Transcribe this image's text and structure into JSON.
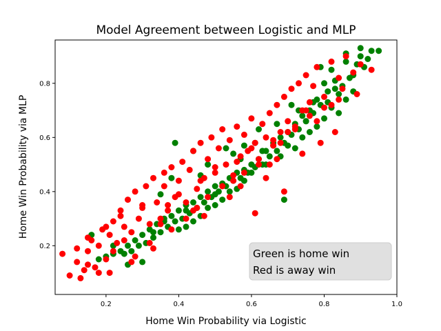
{
  "chart_data": {
    "type": "scatter",
    "title": "Model Agreement between Logistic and MLP",
    "xlabel": "Home Win Probability via Logistic",
    "ylabel": "Home Win Probability via MLP",
    "xlim": [
      0.06,
      1.0
    ],
    "ylim": [
      0.02,
      0.96
    ],
    "x_ticks": [
      "0.2",
      "0.4",
      "0.6",
      "0.8",
      "1.0"
    ],
    "y_ticks": [
      "0.2",
      "0.4",
      "0.6",
      "0.8"
    ],
    "grid": false,
    "colors": {
      "home_win": "#008000",
      "away_win": "#ff0000"
    },
    "annotation": {
      "lines": [
        "Green is home win",
        "Red is away win"
      ],
      "box_color": "#e0e0e0"
    },
    "series": [
      {
        "color": "#008000",
        "x": [
          0.86,
          0.9,
          0.82,
          0.93,
          0.88,
          0.8,
          0.84,
          0.91,
          0.78,
          0.87,
          0.76,
          0.83,
          0.89,
          0.74,
          0.81,
          0.85,
          0.72,
          0.79,
          0.92,
          0.7,
          0.77,
          0.86,
          0.68,
          0.75,
          0.82,
          0.66,
          0.73,
          0.8,
          0.64,
          0.71,
          0.78,
          0.62,
          0.69,
          0.84,
          0.6,
          0.67,
          0.74,
          0.58,
          0.65,
          0.88,
          0.56,
          0.63,
          0.7,
          0.54,
          0.61,
          0.76,
          0.52,
          0.59,
          0.68,
          0.5,
          0.57,
          0.72,
          0.48,
          0.55,
          0.64,
          0.46,
          0.53,
          0.6,
          0.44,
          0.51,
          0.58,
          0.42,
          0.49,
          0.56,
          0.4,
          0.47,
          0.54,
          0.38,
          0.45,
          0.52,
          0.36,
          0.43,
          0.5,
          0.34,
          0.41,
          0.48,
          0.32,
          0.39,
          0.46,
          0.3,
          0.37,
          0.44,
          0.28,
          0.35,
          0.42,
          0.26,
          0.33,
          0.4,
          0.24,
          0.31,
          0.22,
          0.29,
          0.2,
          0.27,
          0.18,
          0.25,
          0.9,
          0.83,
          0.75,
          0.66,
          0.57,
          0.48,
          0.38,
          0.95,
          0.62,
          0.71,
          0.53,
          0.44,
          0.35,
          0.86,
          0.79,
          0.61,
          0.73,
          0.67,
          0.55,
          0.46,
          0.39,
          0.81,
          0.77,
          0.69,
          0.63,
          0.5,
          0.42,
          0.3,
          0.58,
          0.36,
          0.26,
          0.33,
          0.22,
          0.16
        ],
        "y": [
          0.88,
          0.9,
          0.85,
          0.92,
          0.83,
          0.8,
          0.76,
          0.86,
          0.74,
          0.82,
          0.7,
          0.78,
          0.87,
          0.68,
          0.73,
          0.79,
          0.65,
          0.72,
          0.89,
          0.62,
          0.69,
          0.74,
          0.6,
          0.66,
          0.71,
          0.57,
          0.63,
          0.67,
          0.55,
          0.61,
          0.64,
          0.52,
          0.58,
          0.69,
          0.5,
          0.55,
          0.6,
          0.48,
          0.53,
          0.77,
          0.47,
          0.5,
          0.57,
          0.45,
          0.49,
          0.62,
          0.43,
          0.47,
          0.53,
          0.42,
          0.45,
          0.56,
          0.4,
          0.44,
          0.5,
          0.38,
          0.42,
          0.47,
          0.36,
          0.4,
          0.44,
          0.35,
          0.38,
          0.41,
          0.33,
          0.36,
          0.4,
          0.31,
          0.34,
          0.37,
          0.3,
          0.32,
          0.35,
          0.28,
          0.3,
          0.34,
          0.26,
          0.29,
          0.31,
          0.24,
          0.27,
          0.29,
          0.22,
          0.25,
          0.27,
          0.2,
          0.23,
          0.26,
          0.18,
          0.21,
          0.17,
          0.2,
          0.16,
          0.18,
          0.15,
          0.17,
          0.93,
          0.81,
          0.66,
          0.58,
          0.52,
          0.5,
          0.45,
          0.92,
          0.63,
          0.72,
          0.56,
          0.55,
          0.39,
          0.91,
          0.86,
          0.58,
          0.7,
          0.65,
          0.54,
          0.46,
          0.58,
          0.77,
          0.73,
          0.37,
          0.55,
          0.39,
          0.33,
          0.14,
          0.57,
          0.29,
          0.13,
          0.25,
          0.2,
          0.24
        ]
      },
      {
        "color": "#ff0000",
        "x": [
          0.08,
          0.1,
          0.12,
          0.13,
          0.14,
          0.15,
          0.16,
          0.17,
          0.18,
          0.19,
          0.2,
          0.21,
          0.22,
          0.23,
          0.24,
          0.25,
          0.26,
          0.27,
          0.28,
          0.29,
          0.3,
          0.31,
          0.32,
          0.33,
          0.34,
          0.35,
          0.36,
          0.37,
          0.38,
          0.39,
          0.4,
          0.41,
          0.42,
          0.43,
          0.44,
          0.45,
          0.46,
          0.47,
          0.48,
          0.49,
          0.5,
          0.51,
          0.52,
          0.53,
          0.54,
          0.55,
          0.56,
          0.57,
          0.58,
          0.59,
          0.6,
          0.61,
          0.62,
          0.63,
          0.64,
          0.65,
          0.66,
          0.67,
          0.68,
          0.69,
          0.7,
          0.71,
          0.72,
          0.73,
          0.74,
          0.75,
          0.76,
          0.77,
          0.78,
          0.8,
          0.82,
          0.84,
          0.86,
          0.88,
          0.9,
          0.93,
          0.12,
          0.15,
          0.18,
          0.22,
          0.25,
          0.28,
          0.32,
          0.35,
          0.38,
          0.42,
          0.45,
          0.48,
          0.52,
          0.55,
          0.58,
          0.62,
          0.65,
          0.68,
          0.72,
          0.75,
          0.78,
          0.82,
          0.85,
          0.15,
          0.2,
          0.24,
          0.3,
          0.36,
          0.4,
          0.46,
          0.5,
          0.56,
          0.6,
          0.66,
          0.7,
          0.76,
          0.8,
          0.84,
          0.89,
          0.21,
          0.27,
          0.33,
          0.44,
          0.54,
          0.64,
          0.74,
          0.83,
          0.61,
          0.69,
          0.37,
          0.47,
          0.57,
          0.67,
          0.79
        ],
        "y": [
          0.17,
          0.09,
          0.14,
          0.08,
          0.11,
          0.18,
          0.22,
          0.12,
          0.2,
          0.26,
          0.15,
          0.24,
          0.29,
          0.21,
          0.33,
          0.27,
          0.37,
          0.25,
          0.4,
          0.3,
          0.34,
          0.42,
          0.28,
          0.45,
          0.36,
          0.3,
          0.47,
          0.33,
          0.49,
          0.38,
          0.44,
          0.51,
          0.36,
          0.48,
          0.55,
          0.41,
          0.58,
          0.45,
          0.52,
          0.6,
          0.47,
          0.56,
          0.63,
          0.5,
          0.59,
          0.46,
          0.64,
          0.53,
          0.61,
          0.55,
          0.67,
          0.58,
          0.5,
          0.65,
          0.6,
          0.69,
          0.57,
          0.72,
          0.62,
          0.75,
          0.66,
          0.78,
          0.64,
          0.8,
          0.7,
          0.83,
          0.73,
          0.79,
          0.86,
          0.75,
          0.88,
          0.82,
          0.9,
          0.84,
          0.87,
          0.85,
          0.19,
          0.13,
          0.1,
          0.18,
          0.22,
          0.16,
          0.21,
          0.28,
          0.26,
          0.3,
          0.34,
          0.38,
          0.42,
          0.44,
          0.47,
          0.52,
          0.5,
          0.58,
          0.63,
          0.7,
          0.66,
          0.72,
          0.78,
          0.23,
          0.27,
          0.31,
          0.35,
          0.42,
          0.39,
          0.44,
          0.49,
          0.51,
          0.56,
          0.59,
          0.62,
          0.68,
          0.71,
          0.74,
          0.76,
          0.1,
          0.14,
          0.19,
          0.33,
          0.38,
          0.45,
          0.54,
          0.62,
          0.32,
          0.4,
          0.35,
          0.31,
          0.42,
          0.52,
          0.58
        ]
      }
    ]
  }
}
